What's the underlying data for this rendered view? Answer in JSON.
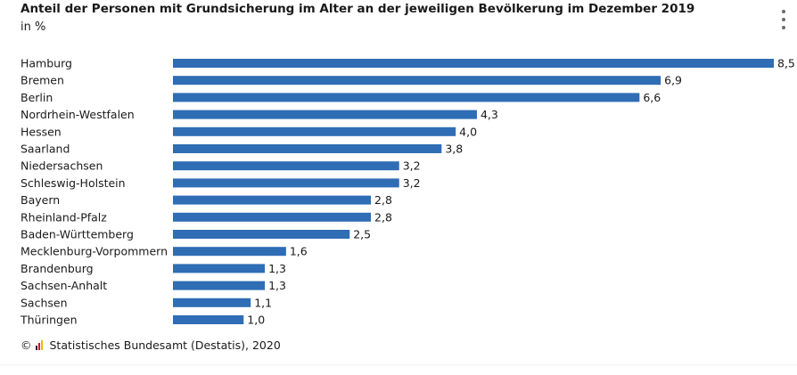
{
  "header": {
    "title": "Anteil der Personen mit Grundsicherung im Alter an der jeweiligen Bevölkerung im Dezember 2019",
    "unit": "in %"
  },
  "footer": {
    "copyright": "©",
    "source": "Statistisches Bundesamt (Destatis), 2020"
  },
  "colors": {
    "bar": "#2f6db5",
    "logo_yellow": "#f2b800",
    "logo_red": "#d6001c",
    "logo_black": "#222222"
  },
  "icons": {
    "menu": "more-vertical-icon",
    "logo": "destatis-logo-icon"
  },
  "chart_data": {
    "type": "bar",
    "orientation": "horizontal",
    "categories": [
      "Hamburg",
      "Bremen",
      "Berlin",
      "Nordrhein-Westfalen",
      "Hessen",
      "Saarland",
      "Niedersachsen",
      "Schleswig-Holstein",
      "Bayern",
      "Rheinland-Pfalz",
      "Baden-Württemberg",
      "Mecklenburg-Vorpommern",
      "Brandenburg",
      "Sachsen-Anhalt",
      "Sachsen",
      "Thüringen"
    ],
    "values": [
      8.5,
      6.9,
      6.6,
      4.3,
      4.0,
      3.8,
      3.2,
      3.2,
      2.8,
      2.8,
      2.5,
      1.6,
      1.3,
      1.3,
      1.1,
      1.0
    ],
    "value_labels": [
      "8,5",
      "6,9",
      "6,6",
      "4,3",
      "4,0",
      "3,8",
      "3,2",
      "3,2",
      "2,8",
      "2,8",
      "2,5",
      "1,6",
      "1,3",
      "1,3",
      "1,1",
      "1,0"
    ],
    "title": "Anteil der Personen mit Grundsicherung im Alter an der jeweiligen Bevölkerung im Dezember 2019",
    "xlabel": "",
    "ylabel": "",
    "xlim": [
      0,
      8.5
    ],
    "grid": false,
    "legend": "none"
  }
}
